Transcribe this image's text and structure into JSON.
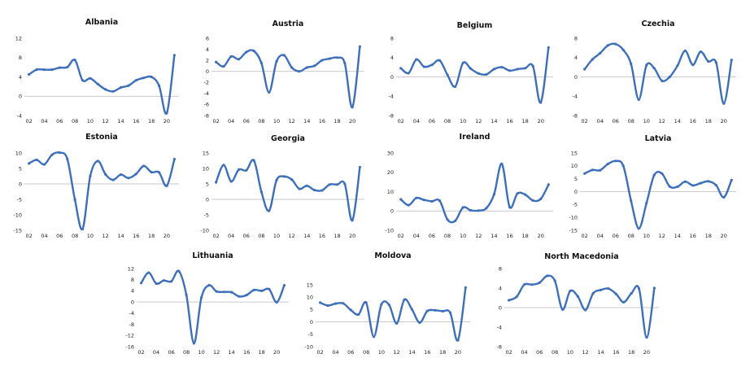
{
  "chart_data": [
    {
      "type": "line",
      "title": "Albania",
      "x": [
        2002,
        2003,
        2004,
        2005,
        2006,
        2007,
        2008,
        2009,
        2010,
        2011,
        2012,
        2013,
        2014,
        2015,
        2016,
        2017,
        2018,
        2019,
        2020,
        2021
      ],
      "series": [
        {
          "values": [
            4.5,
            5.5,
            5.5,
            5.5,
            5.9,
            6.0,
            7.5,
            3.3,
            3.7,
            2.5,
            1.4,
            1.0,
            1.8,
            2.2,
            3.3,
            3.8,
            4.0,
            2.2,
            -3.5,
            8.5
          ]
        }
      ],
      "ylim": [
        -4,
        12
      ],
      "yticks": [
        -4,
        0,
        4,
        8,
        12
      ],
      "xticks": [
        "02",
        "04",
        "06",
        "08",
        "10",
        "12",
        "14",
        "16",
        "18",
        "20"
      ]
    },
    {
      "type": "line",
      "title": "Austria",
      "x": [
        2002,
        2003,
        2004,
        2005,
        2006,
        2007,
        2008,
        2009,
        2010,
        2011,
        2012,
        2013,
        2014,
        2015,
        2016,
        2017,
        2018,
        2019,
        2020,
        2021
      ],
      "series": [
        {
          "values": [
            1.7,
            0.9,
            2.7,
            2.2,
            3.5,
            3.7,
            1.5,
            -3.8,
            1.8,
            2.9,
            0.7,
            0.0,
            0.7,
            1.0,
            2.0,
            2.3,
            2.5,
            1.5,
            -6.5,
            4.5
          ]
        }
      ],
      "ylim": [
        -8,
        6
      ],
      "yticks": [
        -8,
        -6,
        -4,
        -2,
        0,
        2,
        4,
        6
      ],
      "xticks": [
        "02",
        "04",
        "06",
        "08",
        "10",
        "12",
        "14",
        "16",
        "18",
        "20"
      ]
    },
    {
      "type": "line",
      "title": "Belgium",
      "x": [
        2002,
        2003,
        2004,
        2005,
        2006,
        2007,
        2008,
        2009,
        2010,
        2011,
        2012,
        2013,
        2014,
        2015,
        2016,
        2017,
        2018,
        2019,
        2020,
        2021
      ],
      "series": [
        {
          "values": [
            1.8,
            0.8,
            3.6,
            2.1,
            2.5,
            3.4,
            0.4,
            -2.0,
            2.9,
            1.7,
            0.7,
            0.5,
            1.6,
            2.0,
            1.3,
            1.6,
            1.8,
            2.2,
            -5.3,
            6.1
          ]
        }
      ],
      "ylim": [
        -8,
        8
      ],
      "yticks": [
        -8,
        -4,
        0,
        4,
        8
      ],
      "xticks": [
        "02",
        "04",
        "06",
        "08",
        "10",
        "12",
        "14",
        "16",
        "18",
        "20"
      ]
    },
    {
      "type": "line",
      "title": "Czechia",
      "x": [
        2002,
        2003,
        2004,
        2005,
        2006,
        2007,
        2008,
        2009,
        2010,
        2011,
        2012,
        2013,
        2014,
        2015,
        2016,
        2017,
        2018,
        2019,
        2020,
        2021
      ],
      "series": [
        {
          "values": [
            1.6,
            3.6,
            4.9,
            6.5,
            6.8,
            5.6,
            2.7,
            -4.7,
            2.4,
            1.8,
            -0.8,
            0.0,
            2.3,
            5.4,
            2.5,
            5.2,
            3.2,
            3.0,
            -5.5,
            3.5
          ]
        }
      ],
      "ylim": [
        -8,
        8
      ],
      "yticks": [
        -8,
        -4,
        0,
        4,
        8
      ],
      "xticks": [
        "02",
        "04",
        "06",
        "08",
        "10",
        "12",
        "14",
        "16",
        "18",
        "20"
      ]
    },
    {
      "type": "line",
      "title": "Estonia",
      "x": [
        2002,
        2003,
        2004,
        2005,
        2006,
        2007,
        2008,
        2009,
        2010,
        2011,
        2012,
        2013,
        2014,
        2015,
        2016,
        2017,
        2018,
        2019,
        2020,
        2021
      ],
      "series": [
        {
          "values": [
            6.6,
            7.8,
            6.3,
            9.4,
            10.1,
            8.1,
            -5.1,
            -14.6,
            2.5,
            7.4,
            3.1,
            1.3,
            3.0,
            1.9,
            3.2,
            5.8,
            3.8,
            3.7,
            -0.6,
            8.0
          ]
        }
      ],
      "ylim": [
        -15,
        10
      ],
      "yticks": [
        -15,
        -10,
        -5,
        0,
        5,
        10
      ],
      "xticks": [
        "02",
        "04",
        "06",
        "08",
        "10",
        "12",
        "14",
        "16",
        "18",
        "20"
      ]
    },
    {
      "type": "line",
      "title": "Georgia",
      "x": [
        2002,
        2003,
        2004,
        2005,
        2006,
        2007,
        2008,
        2009,
        2010,
        2011,
        2012,
        2013,
        2014,
        2015,
        2016,
        2017,
        2018,
        2019,
        2020,
        2021
      ],
      "series": [
        {
          "values": [
            5.5,
            11.1,
            5.8,
            9.6,
            9.4,
            12.6,
            2.4,
            -3.7,
            6.2,
            7.4,
            6.4,
            3.4,
            4.4,
            3.0,
            2.9,
            4.8,
            4.8,
            5.0,
            -6.8,
            10.4
          ]
        }
      ],
      "ylim": [
        -10,
        15
      ],
      "yticks": [
        -10,
        -5,
        0,
        5,
        10,
        15
      ],
      "xticks": [
        "02",
        "04",
        "06",
        "08",
        "10",
        "12",
        "14",
        "16",
        "18",
        "20"
      ]
    },
    {
      "type": "line",
      "title": "Ireland",
      "x": [
        2002,
        2003,
        2004,
        2005,
        2006,
        2007,
        2008,
        2009,
        2010,
        2011,
        2012,
        2013,
        2014,
        2015,
        2016,
        2017,
        2018,
        2019,
        2020,
        2021
      ],
      "series": [
        {
          "values": [
            6.0,
            3.0,
            6.7,
            5.7,
            5.0,
            5.3,
            -4.5,
            -5.1,
            1.8,
            0.3,
            0.2,
            1.4,
            8.6,
            24.4,
            2.0,
            9.0,
            8.5,
            5.4,
            6.2,
            13.6
          ]
        }
      ],
      "ylim": [
        -10,
        30
      ],
      "yticks": [
        -10,
        0,
        10,
        20,
        30
      ],
      "xticks": [
        "02",
        "04",
        "06",
        "08",
        "10",
        "12",
        "14",
        "16",
        "18",
        "20"
      ]
    },
    {
      "type": "line",
      "title": "Latvia",
      "x": [
        2002,
        2003,
        2004,
        2005,
        2006,
        2007,
        2008,
        2009,
        2010,
        2011,
        2012,
        2013,
        2014,
        2015,
        2016,
        2017,
        2018,
        2019,
        2020,
        2021
      ],
      "series": [
        {
          "values": [
            7.0,
            8.4,
            8.3,
            10.7,
            11.9,
            10.0,
            -3.5,
            -14.3,
            -4.5,
            6.4,
            7.0,
            2.0,
            1.9,
            3.9,
            2.4,
            3.3,
            4.0,
            2.5,
            -2.2,
            4.5
          ]
        }
      ],
      "ylim": [
        -15,
        15
      ],
      "yticks": [
        -15,
        -10,
        -5,
        0,
        5,
        10,
        15
      ],
      "xticks": [
        "02",
        "04",
        "06",
        "08",
        "10",
        "12",
        "14",
        "16",
        "18",
        "20"
      ]
    },
    {
      "type": "line",
      "title": "Lithuania",
      "x": [
        2002,
        2003,
        2004,
        2005,
        2006,
        2007,
        2008,
        2009,
        2010,
        2011,
        2012,
        2013,
        2014,
        2015,
        2016,
        2017,
        2018,
        2019,
        2020,
        2021
      ],
      "series": [
        {
          "values": [
            6.8,
            10.5,
            6.6,
            7.7,
            7.4,
            11.1,
            2.6,
            -14.8,
            1.6,
            6.0,
            3.8,
            3.6,
            3.5,
            2.0,
            2.5,
            4.3,
            4.0,
            4.6,
            -0.1,
            6.0
          ]
        }
      ],
      "ylim": [
        -16,
        12
      ],
      "yticks": [
        -16,
        -12,
        -8,
        -4,
        0,
        4,
        8,
        12
      ],
      "xticks": [
        "02",
        "04",
        "06",
        "08",
        "10",
        "12",
        "14",
        "16",
        "18",
        "20"
      ]
    },
    {
      "type": "line",
      "title": "Moldova",
      "x": [
        2002,
        2003,
        2004,
        2005,
        2006,
        2007,
        2008,
        2009,
        2010,
        2011,
        2012,
        2013,
        2014,
        2015,
        2016,
        2017,
        2018,
        2019,
        2020,
        2021
      ],
      "series": [
        {
          "values": [
            7.8,
            6.6,
            7.4,
            7.5,
            4.8,
            3.0,
            7.8,
            -6.0,
            7.1,
            6.9,
            -0.6,
            9.0,
            5.0,
            -0.3,
            4.4,
            4.7,
            4.3,
            3.7,
            -7.4,
            13.9
          ]
        }
      ],
      "ylim": [
        -10,
        15
      ],
      "yticks": [
        -10,
        -5,
        0,
        5,
        10,
        15
      ],
      "xticks": [
        "02",
        "04",
        "06",
        "08",
        "10",
        "12",
        "14",
        "16",
        "18",
        "20"
      ]
    },
    {
      "type": "line",
      "title": "North Macedonia",
      "x": [
        2002,
        2003,
        2004,
        2005,
        2006,
        2007,
        2008,
        2009,
        2010,
        2011,
        2012,
        2013,
        2014,
        2015,
        2016,
        2017,
        2018,
        2019,
        2020,
        2021
      ],
      "series": [
        {
          "values": [
            1.5,
            2.2,
            4.7,
            4.7,
            5.1,
            6.5,
            5.5,
            -0.4,
            3.4,
            2.3,
            -0.5,
            2.9,
            3.6,
            3.9,
            2.8,
            1.1,
            2.9,
            3.9,
            -6.1,
            4.0
          ]
        }
      ],
      "ylim": [
        -8,
        8
      ],
      "yticks": [
        -8,
        -4,
        0,
        4,
        8
      ],
      "xticks": [
        "02",
        "04",
        "06",
        "08",
        "10",
        "12",
        "14",
        "16",
        "18",
        "20"
      ]
    }
  ],
  "colors": {
    "line": "#3d6fba",
    "zero": "#b8b8b8",
    "text": "#222222"
  }
}
